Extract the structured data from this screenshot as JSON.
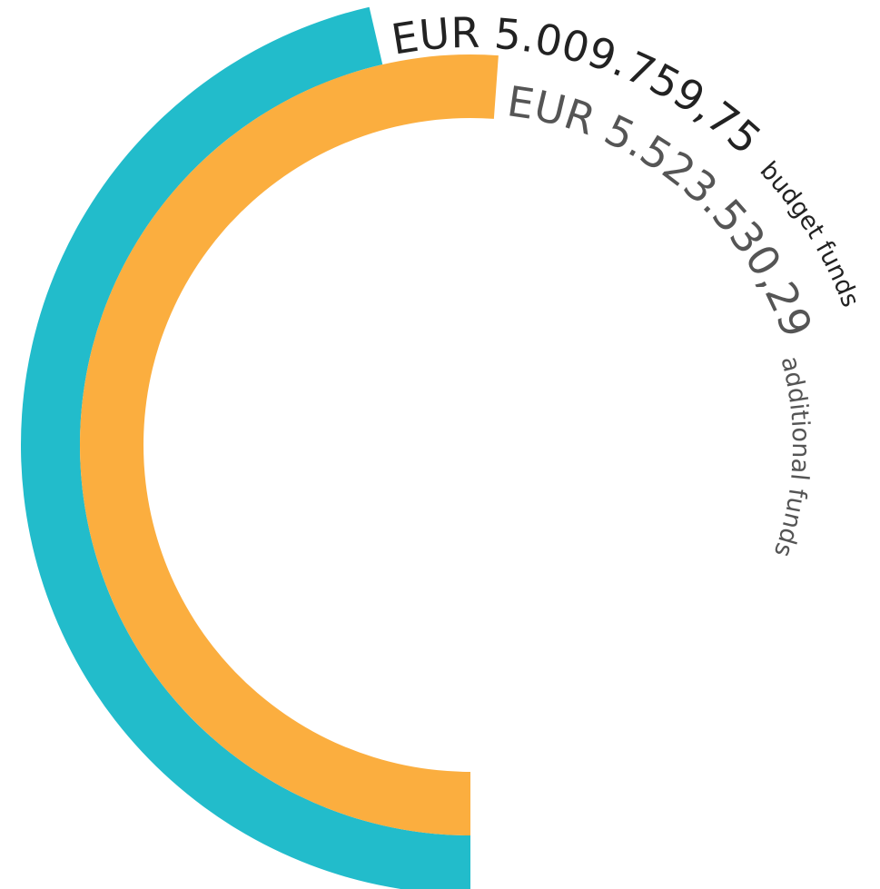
{
  "chart_data": {
    "type": "radial_bar",
    "ylim": [
      0,
      10800000
    ],
    "series": [
      {
        "name": "budget funds",
        "color": "#22bccb",
        "values": [
          5009759.75
        ],
        "value_labels": [
          "EUR 5.009.759,75"
        ]
      },
      {
        "name": "additional funds",
        "color": "#fbae3f",
        "values": [
          5523530.29
        ],
        "value_labels": [
          "EUR 5.523.530,29"
        ]
      }
    ]
  }
}
